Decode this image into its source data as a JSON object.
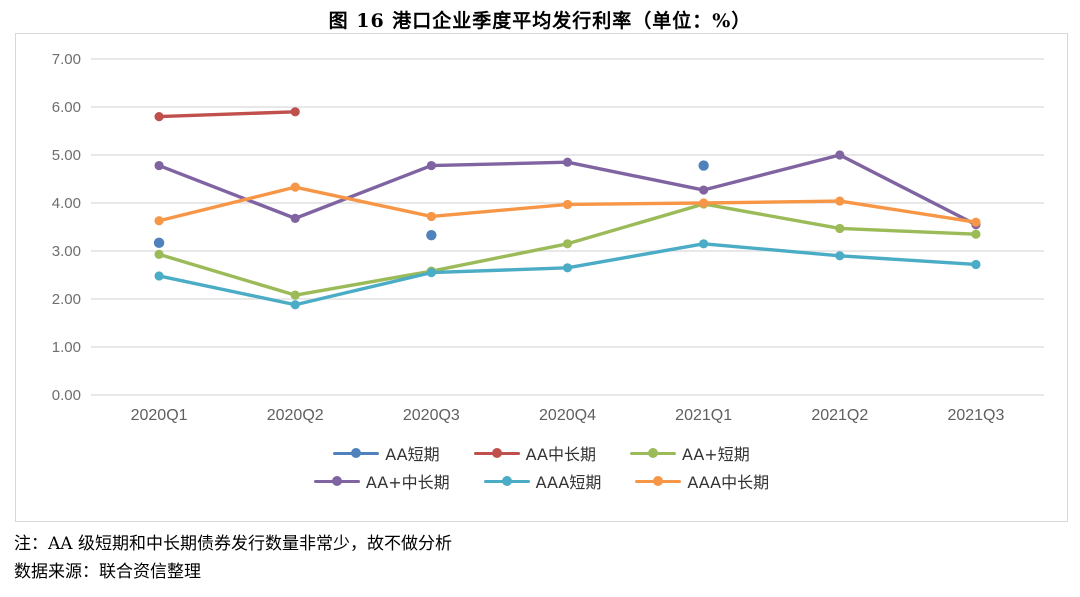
{
  "title": "图 16  港口企业季度平均发行利率（单位：%）",
  "notes": {
    "note1": "注：AA 级短期和中长期债券发行数量非常少，故不做分析",
    "note2": "数据来源：联合资信整理"
  },
  "chart_data": {
    "type": "line",
    "title": "港口企业季度平均发行利率",
    "unit": "%",
    "categories": [
      "2020Q1",
      "2020Q2",
      "2020Q3",
      "2020Q4",
      "2021Q1",
      "2021Q2",
      "2021Q3"
    ],
    "series": [
      {
        "name": "AA短期",
        "color": "#4F81BD",
        "markers_only": true,
        "values": [
          3.17,
          null,
          3.33,
          null,
          4.78,
          null,
          null
        ]
      },
      {
        "name": "AA中长期",
        "color": "#C0504D",
        "markers_only": false,
        "values": [
          5.8,
          5.9,
          null,
          null,
          null,
          null,
          null
        ]
      },
      {
        "name": "AA+短期",
        "color": "#9BBB59",
        "markers_only": false,
        "values": [
          2.93,
          2.08,
          2.58,
          3.15,
          3.98,
          3.47,
          3.35
        ]
      },
      {
        "name": "AA+中长期",
        "color": "#8064A2",
        "markers_only": false,
        "values": [
          4.78,
          3.68,
          4.78,
          4.85,
          4.27,
          5.0,
          3.55
        ]
      },
      {
        "name": "AAA短期",
        "color": "#4BACC6",
        "markers_only": false,
        "values": [
          2.48,
          1.88,
          2.55,
          2.65,
          3.15,
          2.9,
          2.72
        ]
      },
      {
        "name": "AAA中长期",
        "color": "#F79646",
        "markers_only": false,
        "values": [
          3.63,
          4.33,
          3.72,
          3.97,
          4.0,
          4.04,
          3.6
        ]
      }
    ],
    "ylim": [
      0,
      7
    ],
    "ytick_step": 1,
    "ytick_labels": [
      "0.00",
      "1.00",
      "2.00",
      "3.00",
      "4.00",
      "5.00",
      "6.00",
      "7.00"
    ],
    "grid": true,
    "legend_position": "bottom",
    "legend_rows": [
      [
        "AA短期",
        "AA中长期",
        "AA+短期"
      ],
      [
        "AA+中长期",
        "AAA短期",
        "AAA中长期"
      ]
    ],
    "axis_label_color": "#6e6e6e",
    "grid_color": "#dadada"
  }
}
